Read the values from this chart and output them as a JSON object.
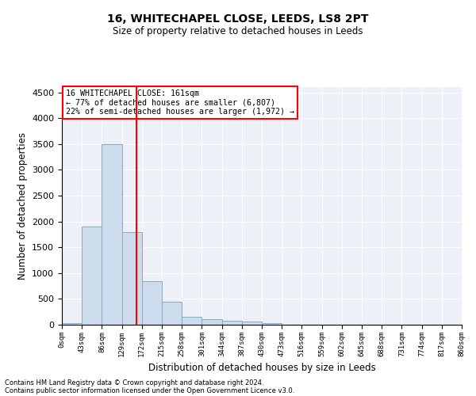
{
  "title1": "16, WHITECHAPEL CLOSE, LEEDS, LS8 2PT",
  "title2": "Size of property relative to detached houses in Leeds",
  "xlabel": "Distribution of detached houses by size in Leeds",
  "ylabel": "Number of detached properties",
  "annotation_line1": "16 WHITECHAPEL CLOSE: 161sqm",
  "annotation_line2": "← 77% of detached houses are smaller (6,807)",
  "annotation_line3": "22% of semi-detached houses are larger (1,972) →",
  "property_size": 161,
  "bin_edges": [
    0,
    43,
    86,
    129,
    172,
    215,
    258,
    301,
    344,
    387,
    430,
    473,
    516,
    559,
    602,
    645,
    688,
    731,
    774,
    817,
    860
  ],
  "bar_heights": [
    30,
    1900,
    3500,
    1790,
    850,
    450,
    160,
    100,
    75,
    65,
    30,
    0,
    0,
    0,
    0,
    0,
    0,
    0,
    0,
    0
  ],
  "bar_color": "#ccdcec",
  "bar_edge_color": "#8aaabb",
  "red_line_x": 161,
  "ylim": [
    0,
    4600
  ],
  "yticks": [
    0,
    500,
    1000,
    1500,
    2000,
    2500,
    3000,
    3500,
    4000,
    4500
  ],
  "bg_color": "#edf1f7",
  "grid_color": "white",
  "footer1": "Contains HM Land Registry data © Crown copyright and database right 2024.",
  "footer2": "Contains public sector information licensed under the Open Government Licence v3.0."
}
